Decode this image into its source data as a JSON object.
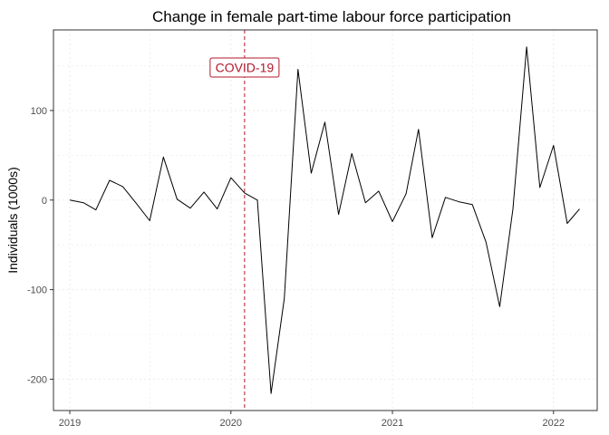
{
  "chart_data": {
    "type": "line",
    "title": "Change in female part-time labour force participation",
    "xlabel": "",
    "ylabel": "Individuals (1000s)",
    "x_ticks": [
      "2019",
      "2020",
      "2021",
      "2022"
    ],
    "y_ticks": [
      -200,
      -100,
      0,
      100
    ],
    "ylim": [
      -235,
      190
    ],
    "xlim": [
      "2018-11-25",
      "2022-04-10"
    ],
    "grid": true,
    "series": [
      {
        "x": [
          "2019-01",
          "2019-02",
          "2019-03",
          "2019-04",
          "2019-05",
          "2019-06",
          "2019-07",
          "2019-08",
          "2019-09",
          "2019-10",
          "2019-11",
          "2019-12",
          "2020-01",
          "2020-02",
          "2020-03",
          "2020-04",
          "2020-05",
          "2020-06",
          "2020-07",
          "2020-08",
          "2020-09",
          "2020-10",
          "2020-11",
          "2020-12",
          "2021-01",
          "2021-02",
          "2021-03",
          "2021-04",
          "2021-05",
          "2021-06",
          "2021-07",
          "2021-08",
          "2021-09",
          "2021-10",
          "2021-11",
          "2021-12",
          "2022-01",
          "2022-02",
          "2022-03"
        ],
        "values": [
          0,
          -3,
          -11,
          22,
          15,
          -4,
          -23,
          48,
          1,
          -9,
          9,
          -10,
          25,
          8,
          0,
          -216,
          -110,
          146,
          30,
          87,
          -16,
          52,
          -3,
          10,
          -24,
          7,
          79,
          -42,
          3,
          -2,
          -5,
          -47,
          -119,
          -10,
          171,
          14,
          61,
          -26,
          -10
        ],
        "color": "#000000"
      }
    ],
    "annotations": [
      {
        "type": "vline",
        "x": "2020-02-01",
        "color": "#b2182b",
        "style": "dashed"
      },
      {
        "type": "label",
        "x": "2020-02-01",
        "y": 148,
        "text": "COVID-19",
        "color": "#b2182b"
      }
    ],
    "colors": {
      "panel_border": "#333333",
      "grid": "#ebebeb",
      "line": "#000000",
      "annotation": "#b2182b"
    }
  }
}
